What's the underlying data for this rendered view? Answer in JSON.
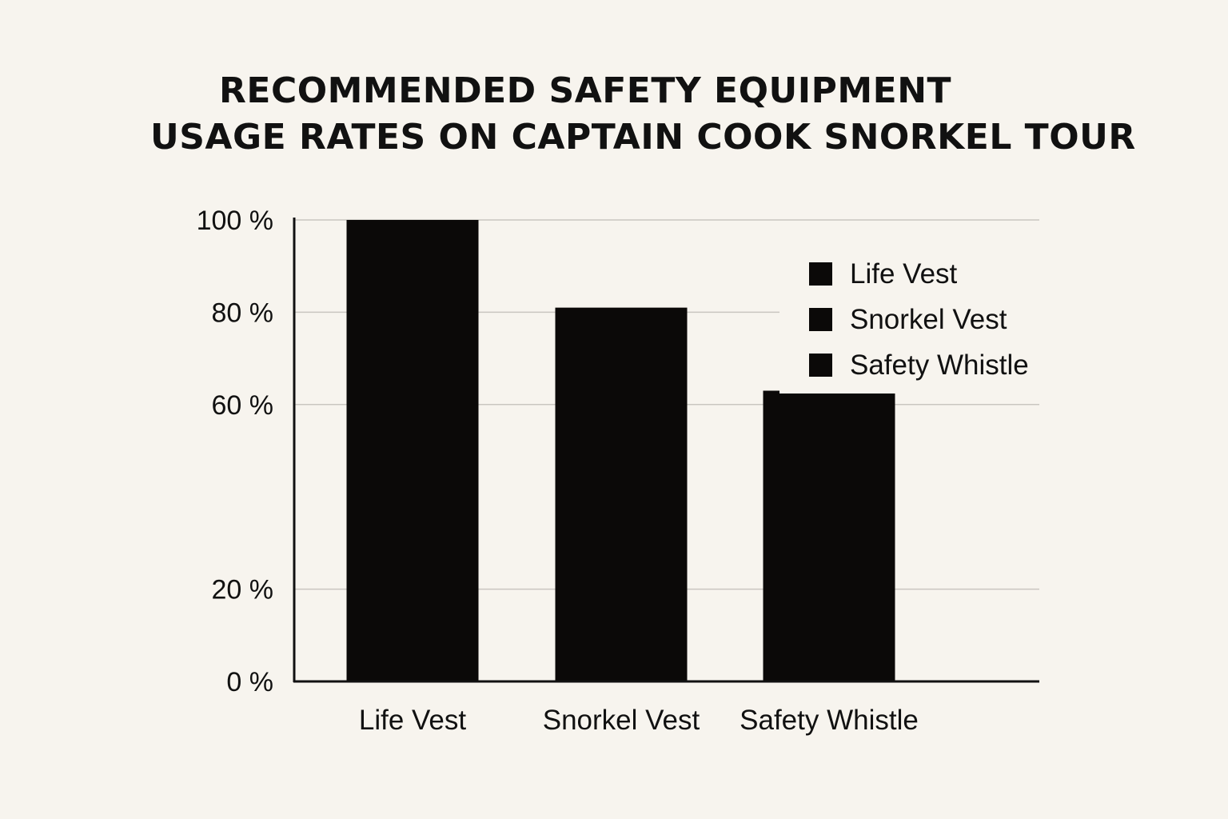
{
  "chart_data": {
    "type": "bar",
    "title": "RECOMMENDED SAFETY EQUIPMENT USAGE RATES ON CAPTAIN COOK SNORKEL TOUR",
    "title_lines": [
      "RECOMMENDED SAFETY EQUIPMENT",
      "USAGE RATES ON CAPTAIN COOK SNORKEL TOUR"
    ],
    "xlabel": "",
    "ylabel": "",
    "categories": [
      "Life Vest",
      "Snorkel Vest",
      "Safety Whistle"
    ],
    "values": [
      100,
      81,
      63
    ],
    "y_ticks": [
      {
        "value": 0,
        "label": "0 %"
      },
      {
        "value": 20,
        "label": "20 %"
      },
      {
        "value": 60,
        "label": "60 %"
      },
      {
        "value": 80,
        "label": "80 %"
      },
      {
        "value": 100,
        "label": "100 %"
      }
    ],
    "ylim": [
      0,
      100
    ],
    "grid": true,
    "legend": {
      "position": "top-right",
      "entries": [
        "Life Vest",
        "Snorkel Vest",
        "Safety Whistle"
      ]
    },
    "bar_color": "#0b0908",
    "grid_color": "#c9c6c0",
    "axis_color": "#111111",
    "background": "#f7f4ee"
  }
}
